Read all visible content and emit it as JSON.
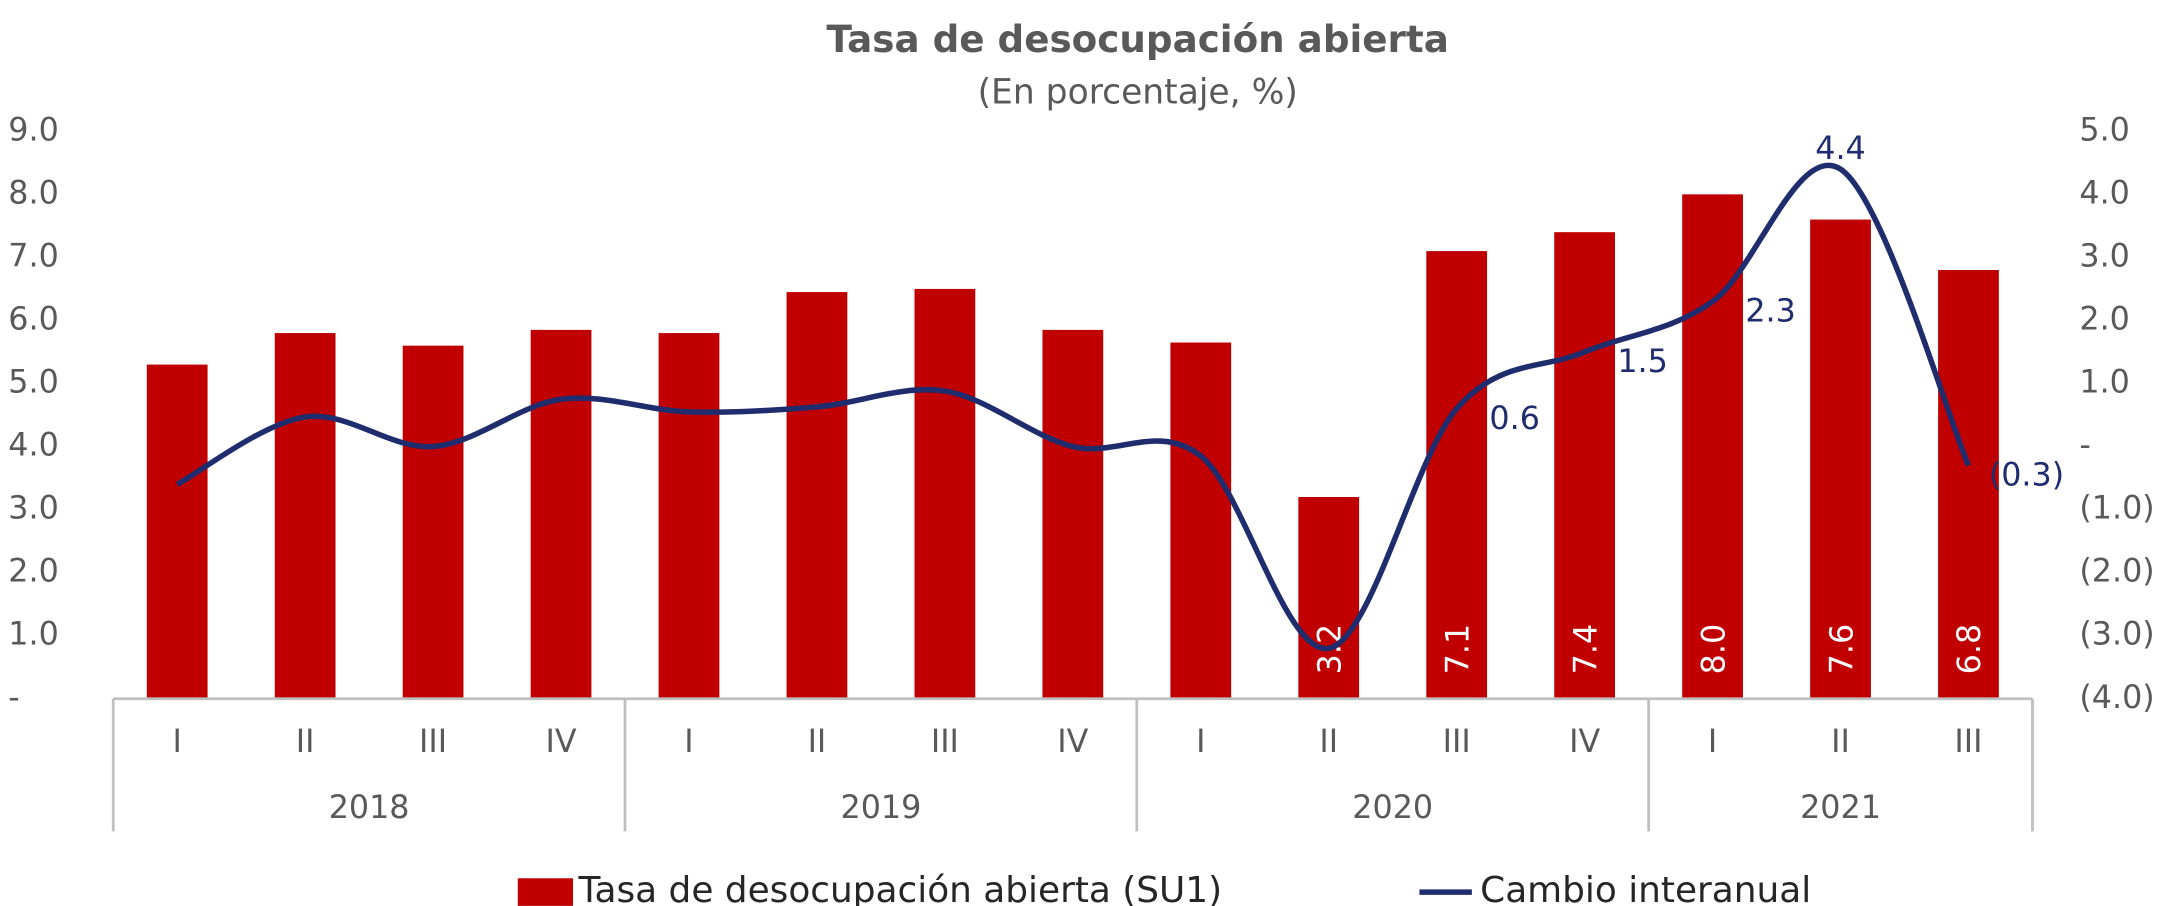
{
  "chart_data": {
    "type": "bar_line",
    "title": "Tasa de desocupación abierta",
    "subtitle": "(En porcentaje, %)",
    "categories": [
      "I",
      "II",
      "III",
      "IV",
      "I",
      "II",
      "III",
      "IV",
      "I",
      "II",
      "III",
      "IV",
      "I",
      "II",
      "III"
    ],
    "groups": [
      "2018",
      "2019",
      "2020",
      "2021"
    ],
    "ylim": [
      0,
      9
    ],
    "yticks": [
      {
        "value": 0,
        "label": "-"
      },
      {
        "value": 1,
        "label": "1.0"
      },
      {
        "value": 2,
        "label": "2.0"
      },
      {
        "value": 3,
        "label": "3.0"
      },
      {
        "value": 4,
        "label": "4.0"
      },
      {
        "value": 5,
        "label": "5.0"
      },
      {
        "value": 6,
        "label": "6.0"
      },
      {
        "value": 7,
        "label": "7.0"
      },
      {
        "value": 8,
        "label": "8.0"
      },
      {
        "value": 9,
        "label": "9.0"
      }
    ],
    "y2lim": [
      -4,
      5
    ],
    "y2ticks": [
      {
        "value": -4,
        "label": "(4.0)"
      },
      {
        "value": -3,
        "label": "(3.0)"
      },
      {
        "value": -2,
        "label": "(2.0)"
      },
      {
        "value": -1,
        "label": "(1.0)"
      },
      {
        "value": 0,
        "label": "-"
      },
      {
        "value": 1,
        "label": "1.0"
      },
      {
        "value": 2,
        "label": "2.0"
      },
      {
        "value": 3,
        "label": "3.0"
      },
      {
        "value": 4,
        "label": "4.0"
      },
      {
        "value": 5,
        "label": "5.0"
      }
    ],
    "series": [
      {
        "name": "Tasa de desocupación abierta (SU1)",
        "type": "bar",
        "color": "#c00000",
        "values": [
          5.3,
          5.8,
          5.6,
          5.85,
          5.8,
          6.45,
          6.5,
          5.85,
          5.65,
          3.2,
          7.1,
          7.4,
          8.0,
          7.6,
          6.8
        ],
        "value_labels": [
          null,
          null,
          null,
          null,
          null,
          null,
          null,
          null,
          null,
          "3.2",
          "7.1",
          "7.4",
          "8.0",
          "7.6",
          "6.8"
        ]
      },
      {
        "name": "Cambio interanual",
        "type": "line",
        "axis": "y2",
        "color": "#1f2d6e",
        "values": [
          -0.6,
          0.47,
          0.0,
          0.75,
          0.55,
          0.63,
          0.88,
          0.0,
          -0.15,
          -3.2,
          0.6,
          1.5,
          2.3,
          4.4,
          -0.3
        ],
        "value_labels": [
          null,
          null,
          null,
          null,
          null,
          null,
          null,
          null,
          null,
          null,
          "0.6",
          "1.5",
          "2.3",
          "4.4",
          "(0.3)"
        ]
      }
    ]
  }
}
